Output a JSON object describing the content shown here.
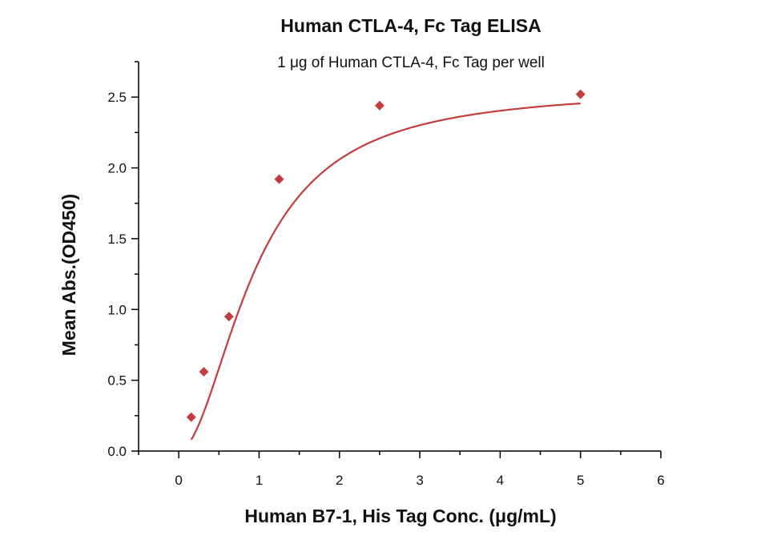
{
  "chart_data": {
    "type": "scatter",
    "title": "Human CTLA-4, Fc Tag ELISA",
    "subtitle": "1 μg of Human CTLA-4, Fc Tag per well",
    "xlabel": "Human B7-1, His Tag Conc. (μg/mL)",
    "ylabel": "Mean Abs.(OD450)",
    "xlim": [
      -0.5,
      6
    ],
    "ylim": [
      0,
      2.75
    ],
    "x_ticks": [
      0,
      1,
      2,
      3,
      4,
      5,
      6
    ],
    "y_ticks": [
      0.0,
      0.5,
      1.0,
      1.5,
      2.0,
      2.5
    ],
    "x_tick_labels": [
      "0",
      "1",
      "2",
      "3",
      "4",
      "5",
      "6"
    ],
    "y_tick_labels": [
      "0.0",
      "0.5",
      "1.0",
      "1.5",
      "2.0",
      "2.5"
    ],
    "series": [
      {
        "x": [
          0.156,
          0.313,
          0.625,
          1.25,
          2.5,
          5.0
        ],
        "y": [
          0.24,
          0.56,
          0.95,
          1.92,
          2.44,
          2.52
        ],
        "marker": "diamond",
        "color": "#c43c3c",
        "fit": "four-parameter logistic curve"
      }
    ],
    "grid": false,
    "legend": "none"
  }
}
